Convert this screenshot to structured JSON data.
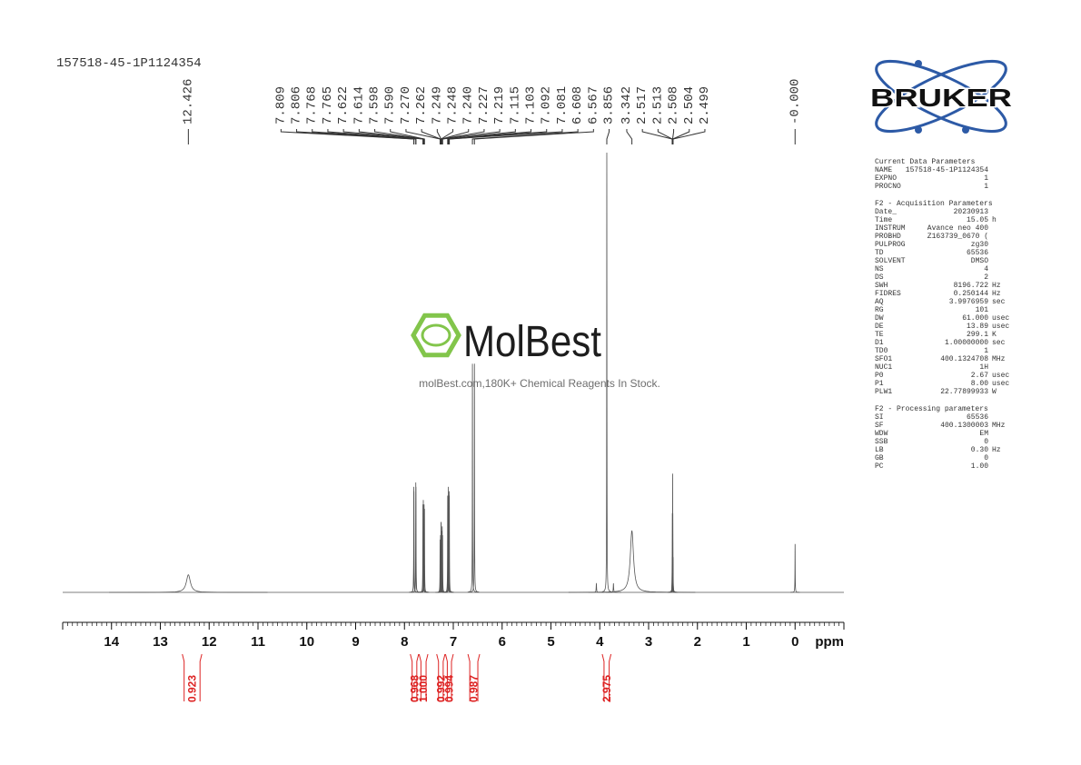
{
  "chart_data": {
    "type": "spectrum",
    "title": "157518-45-1P1124354",
    "x_label": "ppm",
    "xlim": [
      15.0,
      -1.0
    ],
    "xticks": [
      14,
      13,
      12,
      11,
      10,
      9,
      8,
      7,
      6,
      5,
      4,
      3,
      2,
      1,
      0
    ],
    "color": "#555555",
    "peaks": {
      "x": [
        12.426,
        7.809,
        7.806,
        7.768,
        7.765,
        7.622,
        7.614,
        7.598,
        7.59,
        7.27,
        7.262,
        7.249,
        7.248,
        7.24,
        7.227,
        7.219,
        7.115,
        7.103,
        7.092,
        7.081,
        6.608,
        6.567,
        4.07,
        3.856,
        3.72,
        3.342,
        2.517,
        2.513,
        2.508,
        2.504,
        2.499,
        0.0
      ],
      "values": [
        4,
        24,
        23,
        25,
        24,
        20,
        21,
        20,
        19,
        12,
        13,
        16,
        16,
        14,
        15,
        13,
        22,
        24,
        22,
        23,
        52,
        52,
        2,
        100,
        2,
        14,
        8,
        18,
        27,
        18,
        8,
        11
      ],
      "widths": [
        0.05,
        0.003,
        0.003,
        0.003,
        0.003,
        0.003,
        0.003,
        0.003,
        0.003,
        0.003,
        0.003,
        0.003,
        0.003,
        0.003,
        0.003,
        0.003,
        0.003,
        0.003,
        0.003,
        0.003,
        0.003,
        0.003,
        0.005,
        0.003,
        0.005,
        0.04,
        0.003,
        0.003,
        0.003,
        0.003,
        0.003,
        0.003
      ]
    },
    "peak_labels": [
      12.426,
      7.809,
      7.806,
      7.768,
      7.765,
      7.622,
      7.614,
      7.598,
      {
        "value": 7.59,
        "label": "7.590"
      },
      {
        "value": 7.27,
        "label": "7.270"
      },
      7.262,
      7.249,
      7.248,
      {
        "value": 7.24,
        "label": "7.240"
      },
      7.227,
      7.219,
      7.115,
      7.103,
      7.092,
      7.081,
      6.608,
      6.567,
      3.856,
      3.342,
      2.517,
      2.513,
      2.508,
      2.504,
      2.499,
      {
        "value": 0,
        "label": "-0.000"
      }
    ],
    "integrals": [
      {
        "value": 0.923,
        "from": 12.55,
        "to": 12.15
      },
      {
        "value": 0.968,
        "from": 7.88,
        "to": 7.71
      },
      {
        "value": 1,
        "label": "1.000",
        "from": 7.7,
        "to": 7.52
      },
      {
        "value": 0.992,
        "from": 7.34,
        "to": 7.17
      },
      {
        "value": 0.994,
        "from": 7.16,
        "to": 7.0
      },
      {
        "value": 0.987,
        "from": 6.7,
        "to": 6.46
      },
      {
        "value": 2.975,
        "from": 3.95,
        "to": 3.77
      }
    ]
  },
  "logo": "BRUKER",
  "watermark": {
    "name": "MolBest",
    "tagline": "molBest.com,180K+ Chemical Reagents In Stock."
  },
  "parameters": [
    {
      "title": "Current Data Parameters",
      "rows": [
        [
          "NAME",
          "157518-45-1P1124354"
        ],
        [
          "EXPNO",
          "1"
        ],
        [
          "PROCNO",
          "1"
        ]
      ]
    },
    {
      "title": "F2 - Acquisition Parameters",
      "rows": [
        [
          "Date_",
          "20230913"
        ],
        [
          "Time",
          "15.05",
          "h"
        ],
        [
          "INSTRUM",
          "Avance neo 400"
        ],
        [
          "PROBHD",
          "Z163739_0670 ("
        ],
        [
          "PULPROG",
          "zg30"
        ],
        [
          "TD",
          "65536"
        ],
        [
          "SOLVENT",
          "DMSO"
        ],
        [
          "NS",
          "4"
        ],
        [
          "DS",
          "2"
        ],
        [
          "SWH",
          "8196.722",
          "Hz"
        ],
        [
          "FIDRES",
          "0.250144",
          "Hz"
        ],
        [
          "AQ",
          "3.9976959",
          "sec"
        ],
        [
          "RG",
          "101"
        ],
        [
          "DW",
          "61.000",
          "usec"
        ],
        [
          "DE",
          "13.89",
          "usec"
        ],
        [
          "TE",
          "299.1",
          "K"
        ],
        [
          "D1",
          "1.00000000",
          "sec"
        ],
        [
          "TD0",
          "1"
        ],
        [
          "SFO1",
          "400.1324708",
          "MHz"
        ],
        [
          "NUC1",
          "1H"
        ],
        [
          "P0",
          "2.67",
          "usec"
        ],
        [
          "P1",
          "8.00",
          "usec"
        ],
        [
          "PLW1",
          "22.77899933",
          "W"
        ]
      ]
    },
    {
      "title": "F2 - Processing parameters",
      "rows": [
        [
          "SI",
          "65536"
        ],
        [
          "SF",
          "400.1300003",
          "MHz"
        ],
        [
          "WDW",
          "EM"
        ],
        [
          "SSB",
          "0"
        ],
        [
          "LB",
          "0.30",
          "Hz"
        ],
        [
          "GB",
          "0"
        ],
        [
          "PC",
          "1.00"
        ]
      ]
    }
  ]
}
